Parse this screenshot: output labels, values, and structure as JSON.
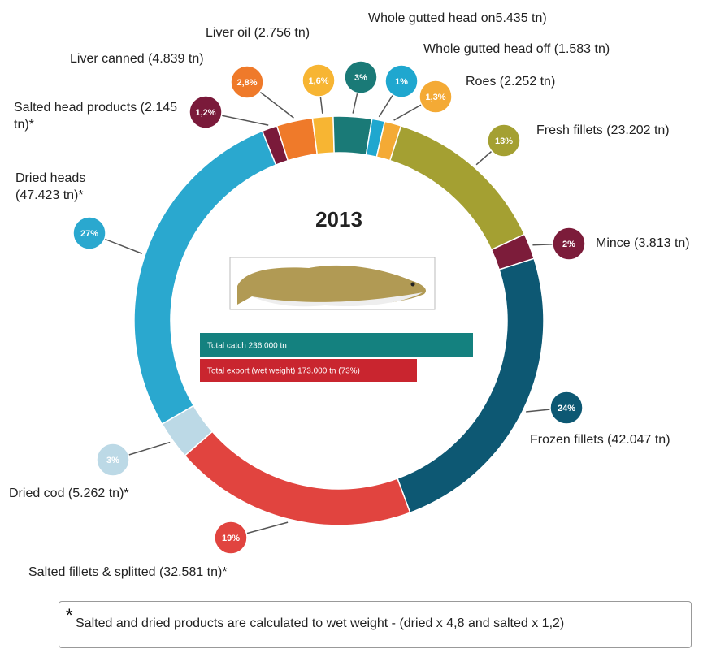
{
  "chart_data": {
    "type": "donut",
    "center_label": "2013",
    "categories": [
      "Salted head products (2.145 tn)*",
      "Liver canned  (4.839 tn)",
      "Liver oil (2.756 tn)",
      "Whole gutted head on5.435 tn)",
      "Whole gutted head off (1.583 tn)",
      "Roes (2.252 tn)",
      "Fresh fillets (23.202 tn)",
      "Mince (3.813 tn)",
      "Frozen fillets (42.047 tn)",
      "Salted fillets & splitted (32.581 tn)*",
      "Dried cod (5.262 tn)*",
      "Dried heads (47.423 tn)*"
    ],
    "values": [
      1.2,
      2.8,
      1.6,
      3,
      1,
      1.3,
      13,
      2,
      24,
      19,
      3,
      27
    ],
    "value_labels": [
      "1,2%",
      "2,8%",
      "1,6%",
      "3%",
      "1%",
      "1,3%",
      "13%",
      "2%",
      "24%",
      "19%",
      "3%",
      "27%"
    ],
    "colors": [
      "#7a1a3a",
      "#ef7a2a",
      "#f7b533",
      "#1a7a77",
      "#1fa7cf",
      "#f4aa35",
      "#a4a032",
      "#7c1c3a",
      "#0d5873",
      "#e1443f",
      "#bcd9e6",
      "#2aa8cf"
    ],
    "annotations": [
      "Total catch 236.000 tn",
      "Total export (wet weight) 173.000 tn (73%)"
    ]
  },
  "footnote": {
    "mark": "*",
    "text": "Salted and dried products are calculated to wet weight - (dried x 4,8 and salted x 1,2)"
  }
}
